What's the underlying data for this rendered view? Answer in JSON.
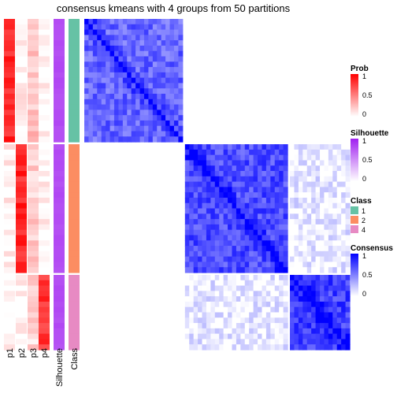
{
  "chart_data": {
    "type": "heatmap",
    "title": "consensus kmeans with 4 groups from 50 partitions",
    "annotation_columns": [
      "p1",
      "p2",
      "p3",
      "p4",
      "Silhouette",
      "Class"
    ],
    "colors": {
      "prob_high": "#FF0000",
      "prob_low": "#FFFFFF",
      "silhouette_high": "#A020F0",
      "silhouette_low": "#FFFFFF",
      "consensus_high": "#0000FF",
      "consensus_low": "#FFFFFF",
      "class_1": "#66C2A5",
      "class_2": "#FC8D62",
      "class_4": "#E78AC3"
    },
    "groups": [
      {
        "class": 1,
        "n_samples": 23,
        "mean_p1": 0.85,
        "mean_p2": 0.05,
        "mean_p3": 0.25,
        "mean_p4": 0.02,
        "silhouette": 0.8,
        "consensus_within": 0.6
      },
      {
        "class": 2,
        "n_samples": 24,
        "mean_p1": 0.05,
        "mean_p2": 0.85,
        "mean_p3": 0.2,
        "mean_p4": 0.05,
        "silhouette": 0.8,
        "consensus_within": 0.7
      },
      {
        "class": 4,
        "n_samples": 14,
        "mean_p1": 0.02,
        "mean_p2": 0.05,
        "mean_p3": 0.15,
        "mean_p4": 0.8,
        "silhouette": 0.8,
        "consensus_within": 0.75
      }
    ],
    "cross_consensus_2_4": 0.08,
    "legends": [
      {
        "title": "Prob",
        "ticks": [
          "1",
          "0.5",
          "0"
        ]
      },
      {
        "title": "Silhouette",
        "ticks": [
          "1",
          "0.5",
          "0"
        ]
      },
      {
        "title": "Class",
        "items": [
          "1",
          "2",
          "4"
        ]
      },
      {
        "title": "Consensus",
        "ticks": [
          "1",
          "0.5",
          "0"
        ]
      }
    ]
  }
}
